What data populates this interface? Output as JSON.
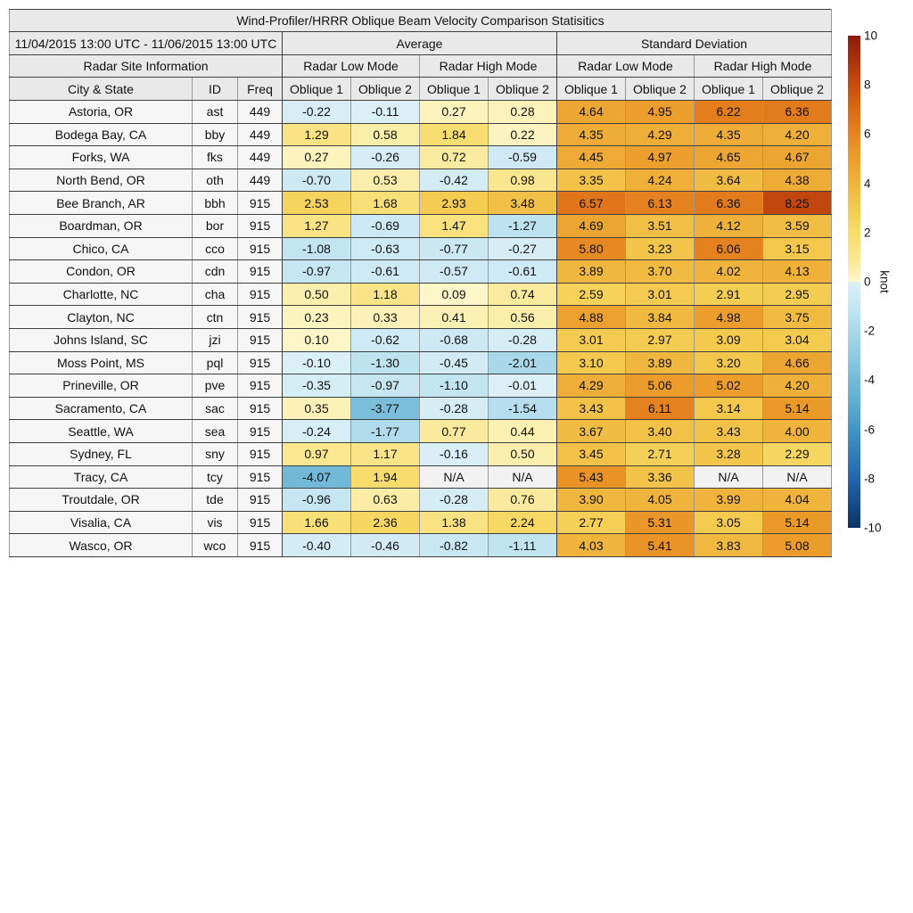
{
  "date_range": "11/04/2015 13:00 UTC - 11/06/2015 13:00 UTC",
  "columns": {
    "site_info_group": "Radar Site Information",
    "average_group": "Average",
    "std_group": "Standard Deviation",
    "modes": [
      "Radar Low Mode",
      "Radar High Mode",
      "Radar Low Mode",
      "Radar High Mode"
    ],
    "obliques": [
      "Oblique 1",
      "Oblique 2",
      "Oblique 1",
      "Oblique 2",
      "Oblique 1",
      "Oblique 2",
      "Oblique 1",
      "Oblique 2"
    ],
    "city": "City & State",
    "id": "ID",
    "freq": "Freq"
  },
  "colors": {
    "header_bg": "#e9e9e9",
    "left_cell_bg": "#f6f6f6",
    "na_bg": "#f2f2f2",
    "colormap_positive": [
      [
        0,
        "#FDF8CE"
      ],
      [
        1,
        "#FAE68E"
      ],
      [
        2,
        "#F8DC6C"
      ],
      [
        3,
        "#F4CB50"
      ],
      [
        4,
        "#F0B43C"
      ],
      [
        5,
        "#EC9E2C"
      ],
      [
        6,
        "#E68420"
      ],
      [
        7,
        "#DC6A14"
      ],
      [
        8,
        "#C94C0E"
      ],
      [
        10,
        "#8C1A0A"
      ]
    ],
    "colormap_negative": [
      [
        0,
        "#DDF0F7"
      ],
      [
        -1,
        "#C5E6F2"
      ],
      [
        -2,
        "#A9D8EA"
      ],
      [
        -3,
        "#8FCBE2"
      ],
      [
        -4,
        "#74BAD8"
      ],
      [
        -5,
        "#5CADD0"
      ],
      [
        -6,
        "#4295C3"
      ],
      [
        -8,
        "#2166AC"
      ],
      [
        -10,
        "#0A3268"
      ]
    ]
  },
  "chart_data": {
    "type": "heatmap",
    "title": "Wind-Profiler/HRRR Oblique Beam Velocity Comparison Statisitics",
    "subtitle": "11/04/2015 13:00 UTC - 11/06/2015 13:00 UTC",
    "unit": "knot",
    "color_range": [
      -10,
      10
    ],
    "colorbar_ticks": [
      "10",
      "8",
      "6",
      "4",
      "2",
      "0",
      "-2",
      "-4",
      "-6",
      "-8",
      "-10"
    ],
    "value_columns": [
      "Average Radar Low Mode Oblique 1",
      "Average Radar Low Mode Oblique 2",
      "Average Radar High Mode Oblique 1",
      "Average Radar High Mode Oblique 2",
      "Standard Deviation Radar Low Mode Oblique 1",
      "Standard Deviation Radar Low Mode Oblique 2",
      "Standard Deviation Radar High Mode Oblique 1",
      "Standard Deviation Radar High Mode Oblique 2"
    ],
    "rows": [
      {
        "city": "Astoria, OR",
        "id": "ast",
        "freq": 449,
        "values": [
          -0.22,
          -0.11,
          0.27,
          0.28,
          4.64,
          4.95,
          6.22,
          6.36
        ]
      },
      {
        "city": "Bodega Bay, CA",
        "id": "bby",
        "freq": 449,
        "values": [
          1.29,
          0.58,
          1.84,
          0.22,
          4.35,
          4.29,
          4.35,
          4.2
        ]
      },
      {
        "city": "Forks, WA",
        "id": "fks",
        "freq": 449,
        "values": [
          0.27,
          -0.26,
          0.72,
          -0.59,
          4.45,
          4.97,
          4.65,
          4.67
        ]
      },
      {
        "city": "North Bend, OR",
        "id": "oth",
        "freq": 449,
        "values": [
          -0.7,
          0.53,
          -0.42,
          0.98,
          3.35,
          4.24,
          3.64,
          4.38
        ]
      },
      {
        "city": "Bee Branch, AR",
        "id": "bbh",
        "freq": 915,
        "values": [
          2.53,
          1.68,
          2.93,
          3.48,
          6.57,
          6.13,
          6.36,
          8.25
        ]
      },
      {
        "city": "Boardman, OR",
        "id": "bor",
        "freq": 915,
        "values": [
          1.27,
          -0.69,
          1.47,
          -1.27,
          4.69,
          3.51,
          4.12,
          3.59
        ]
      },
      {
        "city": "Chico, CA",
        "id": "cco",
        "freq": 915,
        "values": [
          -1.08,
          -0.63,
          -0.77,
          -0.27,
          5.8,
          3.23,
          6.06,
          3.15
        ]
      },
      {
        "city": "Condon, OR",
        "id": "cdn",
        "freq": 915,
        "values": [
          -0.97,
          -0.61,
          -0.57,
          -0.61,
          3.89,
          3.7,
          4.02,
          4.13
        ]
      },
      {
        "city": "Charlotte, NC",
        "id": "cha",
        "freq": 915,
        "values": [
          0.5,
          1.18,
          0.09,
          0.74,
          2.59,
          3.01,
          2.91,
          2.95
        ]
      },
      {
        "city": "Clayton, NC",
        "id": "ctn",
        "freq": 915,
        "values": [
          0.23,
          0.33,
          0.41,
          0.56,
          4.88,
          3.84,
          4.98,
          3.75
        ]
      },
      {
        "city": "Johns Island, SC",
        "id": "jzi",
        "freq": 915,
        "values": [
          0.1,
          -0.62,
          -0.68,
          -0.28,
          3.01,
          2.97,
          3.09,
          3.04
        ]
      },
      {
        "city": "Moss Point, MS",
        "id": "pql",
        "freq": 915,
        "values": [
          -0.1,
          -1.3,
          -0.45,
          -2.01,
          3.1,
          3.89,
          3.2,
          4.66
        ]
      },
      {
        "city": "Prineville, OR",
        "id": "pve",
        "freq": 915,
        "values": [
          -0.35,
          -0.97,
          -1.1,
          -0.01,
          4.29,
          5.06,
          5.02,
          4.2
        ]
      },
      {
        "city": "Sacramento, CA",
        "id": "sac",
        "freq": 915,
        "values": [
          0.35,
          -3.77,
          -0.28,
          -1.54,
          3.43,
          6.11,
          3.14,
          5.14
        ]
      },
      {
        "city": "Seattle, WA",
        "id": "sea",
        "freq": 915,
        "values": [
          -0.24,
          -1.77,
          0.77,
          0.44,
          3.67,
          3.4,
          3.43,
          4.0
        ]
      },
      {
        "city": "Sydney, FL",
        "id": "sny",
        "freq": 915,
        "values": [
          0.97,
          1.17,
          -0.16,
          0.5,
          3.45,
          2.71,
          3.28,
          2.29
        ]
      },
      {
        "city": "Tracy, CA",
        "id": "tcy",
        "freq": 915,
        "values": [
          -4.07,
          1.94,
          "N/A",
          "N/A",
          5.43,
          3.36,
          "N/A",
          "N/A"
        ]
      },
      {
        "city": "Troutdale, OR",
        "id": "tde",
        "freq": 915,
        "values": [
          -0.96,
          0.63,
          -0.28,
          0.76,
          3.9,
          4.05,
          3.99,
          4.04
        ]
      },
      {
        "city": "Visalia, CA",
        "id": "vis",
        "freq": 915,
        "values": [
          1.66,
          2.36,
          1.38,
          2.24,
          2.77,
          5.31,
          3.05,
          5.14
        ]
      },
      {
        "city": "Wasco, OR",
        "id": "wco",
        "freq": 915,
        "values": [
          -0.4,
          -0.46,
          -0.82,
          -1.11,
          4.03,
          5.41,
          3.83,
          5.08
        ]
      }
    ]
  }
}
